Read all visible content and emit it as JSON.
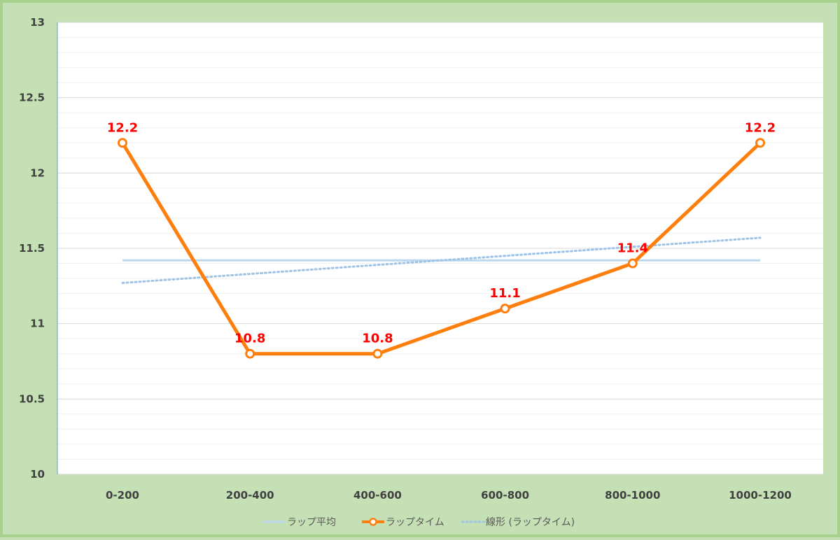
{
  "chart_data": {
    "type": "line",
    "categories": [
      "0-200",
      "200-400",
      "400-600",
      "600-800",
      "800-1000",
      "1000-1200"
    ],
    "ylim": [
      10,
      13
    ],
    "yticks": [
      "10",
      "10.5",
      "11",
      "11.5",
      "12",
      "12.5",
      "13"
    ],
    "grid": true,
    "legend_position": "bottom",
    "series": [
      {
        "name": "ラップ平均",
        "values": [
          11.42,
          11.42,
          11.42,
          11.42,
          11.42,
          11.42
        ],
        "color": "#bdd7ee",
        "style": "solid"
      },
      {
        "name": "ラップタイム",
        "values": [
          12.2,
          10.8,
          10.8,
          11.1,
          11.4,
          12.2
        ],
        "labels": [
          "12.2",
          "10.8",
          "10.8",
          "11.1",
          "11.4",
          "12.2"
        ],
        "color": "#ff7f0e",
        "label_color": "#ff0000",
        "style": "solid-markers"
      },
      {
        "name": "線形 (ラップタイム)",
        "values": [
          11.27,
          11.33,
          11.39,
          11.45,
          11.51,
          11.57
        ],
        "color": "#9dc3e6",
        "style": "dotted"
      }
    ]
  }
}
